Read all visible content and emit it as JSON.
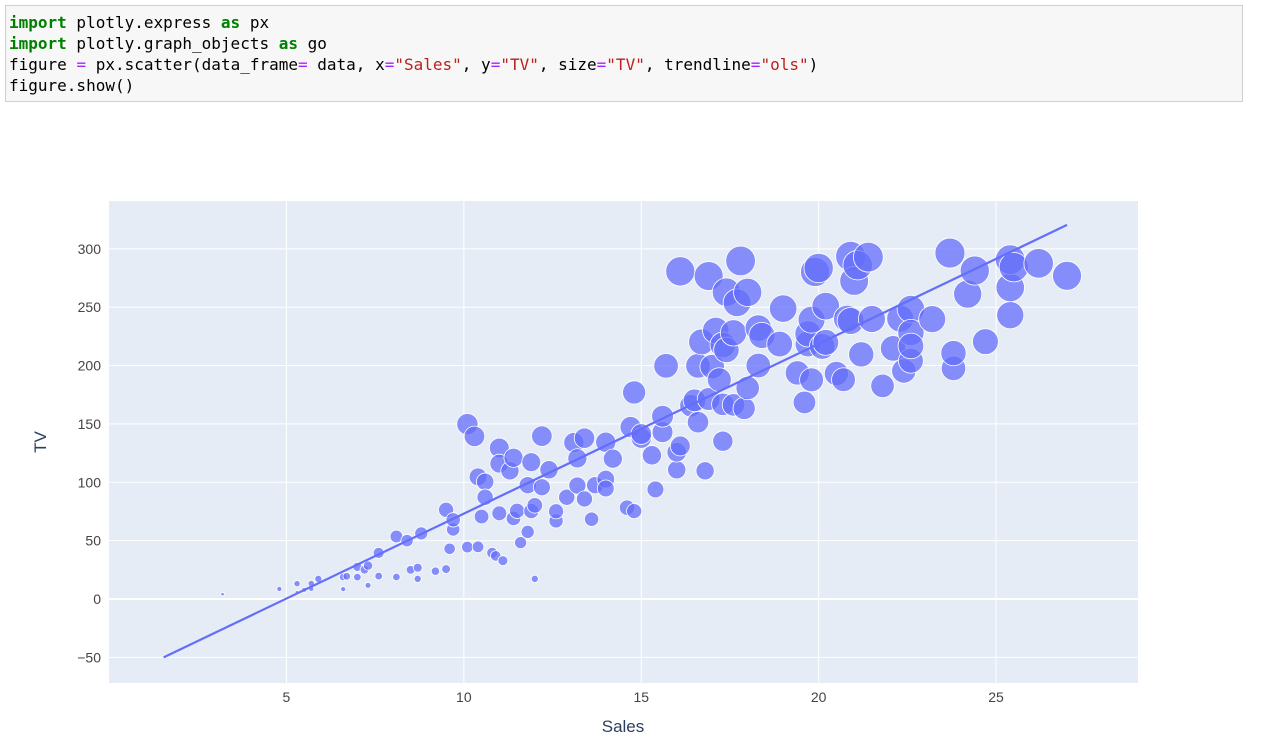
{
  "code": {
    "lines": [
      [
        {
          "text": "import",
          "color": "#008000",
          "bold": true
        },
        {
          "text": " plotly.express "
        },
        {
          "text": "as",
          "color": "#008000",
          "bold": true
        },
        {
          "text": " px"
        }
      ],
      [
        {
          "text": "import",
          "color": "#008000",
          "bold": true
        },
        {
          "text": " plotly.graph_objects "
        },
        {
          "text": "as",
          "color": "#008000",
          "bold": true
        },
        {
          "text": " go"
        }
      ],
      [
        {
          "text": "figure "
        },
        {
          "text": "=",
          "color": "#aa22ff"
        },
        {
          "text": " px.scatter(data_frame"
        },
        {
          "text": "=",
          "color": "#aa22ff"
        },
        {
          "text": " data, x"
        },
        {
          "text": "=",
          "color": "#aa22ff"
        },
        {
          "text": "\"Sales\"",
          "color": "#ba2121"
        },
        {
          "text": ", y"
        },
        {
          "text": "=",
          "color": "#aa22ff"
        },
        {
          "text": "\"TV\"",
          "color": "#ba2121"
        },
        {
          "text": ", size"
        },
        {
          "text": "=",
          "color": "#aa22ff"
        },
        {
          "text": "\"TV\"",
          "color": "#ba2121"
        },
        {
          "text": ", trendline"
        },
        {
          "text": "=",
          "color": "#aa22ff"
        },
        {
          "text": "\"ols\"",
          "color": "#ba2121"
        },
        {
          "text": ")"
        }
      ],
      [
        {
          "text": "figure.show()"
        }
      ]
    ]
  },
  "chart_data": {
    "type": "scatter",
    "x_label": "Sales",
    "y_label": "TV",
    "xlim": [
      0,
      29
    ],
    "ylim": [
      -72,
      341
    ],
    "xticks": [
      5,
      10,
      15,
      20,
      25
    ],
    "yticks": [
      {
        "value": -50,
        "label": "−50"
      },
      0,
      50,
      100,
      150,
      200,
      250,
      300
    ],
    "grid": true,
    "background": "#e5ecf6",
    "series": [
      {
        "type": "scatter",
        "color": "#636efa",
        "x": [
          3.2,
          4.8,
          5.3,
          5.3,
          5.5,
          5.7,
          5.7,
          5.9,
          6.6,
          6.6,
          6.7,
          7.0,
          7.0,
          7.2,
          7.3,
          7.3,
          7.6,
          7.6,
          8.1,
          8.1,
          8.4,
          8.5,
          8.7,
          8.7,
          8.8,
          9.2,
          9.5,
          9.5,
          9.6,
          9.7,
          9.7,
          10.1,
          10.1,
          10.3,
          10.4,
          10.4,
          10.6,
          10.6,
          10.5,
          10.8,
          10.9,
          11.0,
          11.0,
          11.0,
          11.1,
          11.3,
          11.4,
          11.4,
          11.5,
          11.6,
          11.8,
          11.8,
          11.9,
          11.9,
          12.0,
          12.0,
          12.2,
          12.2,
          12.4,
          12.6,
          12.6,
          12.9,
          13.1,
          13.2,
          13.2,
          13.4,
          13.4,
          13.6,
          13.7,
          14.0,
          14.0,
          14.0,
          14.2,
          14.6,
          14.7,
          14.8,
          14.8,
          15.0,
          15.0,
          15.3,
          15.4,
          15.6,
          15.6,
          15.7,
          16.0,
          16.0,
          16.1,
          16.1,
          16.4,
          16.5,
          16.6,
          16.6,
          16.7,
          16.9,
          16.8,
          16.9,
          17.1,
          17.0,
          17.2,
          17.3,
          17.3,
          17.3,
          17.4,
          17.4,
          17.6,
          17.6,
          17.7,
          17.8,
          17.9,
          18.0,
          18.0,
          18.3,
          18.4,
          18.3,
          18.9,
          19.0,
          19.4,
          19.6,
          19.7,
          19.7,
          19.8,
          19.8,
          19.9,
          20.0,
          20.1,
          20.2,
          20.2,
          20.5,
          20.7,
          20.8,
          20.9,
          20.9,
          21.0,
          21.1,
          21.2,
          21.5,
          21.8,
          21.4,
          22.1,
          22.3,
          22.6,
          22.6,
          22.4,
          22.6,
          22.6,
          23.2,
          23.8,
          23.8,
          23.7,
          24.2,
          24.4,
          24.7,
          25.4,
          25.4,
          25.4,
          25.5,
          26.2,
          27.0
        ],
        "y": [
          4.1,
          8.6,
          13.1,
          5.4,
          7.8,
          13.2,
          8.7,
          17.2,
          8.4,
          18.8,
          19.4,
          27.5,
          18.7,
          25.1,
          28.6,
          11.7,
          39.5,
          19.6,
          53.5,
          18.8,
          50,
          25,
          17.2,
          26.8,
          56.2,
          23.8,
          25.6,
          76.4,
          43,
          59.6,
          67.8,
          149.8,
          44.5,
          139.3,
          44.7,
          104.6,
          100.4,
          87.2,
          70.6,
          39.5,
          36.9,
          73.4,
          129.4,
          116,
          32.8,
          109.8,
          121,
          69,
          75.5,
          48.3,
          97.5,
          57.5,
          117.2,
          75.3,
          17.2,
          80.2,
          95.7,
          139.5,
          110.7,
          66.9,
          75.1,
          87.2,
          134,
          97.2,
          120.5,
          85.7,
          137.8,
          68.4,
          97.5,
          102.7,
          94.7,
          134.3,
          120.2,
          78.2,
          147.3,
          75.3,
          177,
          137.9,
          141.3,
          123.1,
          93.9,
          142.9,
          156.6,
          199.8,
          110.7,
          125.7,
          131.1,
          280.7,
          165.6,
          170.2,
          199.8,
          151.5,
          220.3,
          171.3,
          109.8,
          276.7,
          230.1,
          199.1,
          187.9,
          217.7,
          135.2,
          166.8,
          262.9,
          213.4,
          228,
          166.3,
          253.8,
          289.7,
          163.3,
          262.7,
          180.8,
          232.1,
          225.8,
          200,
          218.4,
          248.8,
          193.7,
          168.4,
          218.5,
          227.2,
          239.3,
          187.8,
          280.2,
          283.6,
          216.4,
          219.8,
          250.9,
          193.2,
          187.9,
          240.1,
          293.6,
          238.2,
          272.5,
          286,
          209.6,
          239.9,
          182.6,
          292.9,
          214.7,
          240.2,
          248.4,
          228.3,
          195.4,
          204.1,
          216.8,
          239.8,
          197.6,
          210.7,
          296.4,
          261.3,
          281.4,
          220.5,
          243.2,
          266.9,
          290.7,
          284.3,
          287.6,
          276.9
        ]
      },
      {
        "type": "line",
        "color": "#636efa",
        "x": [
          1.54,
          27.0
        ],
        "y": [
          -50,
          320.5
        ]
      }
    ]
  }
}
